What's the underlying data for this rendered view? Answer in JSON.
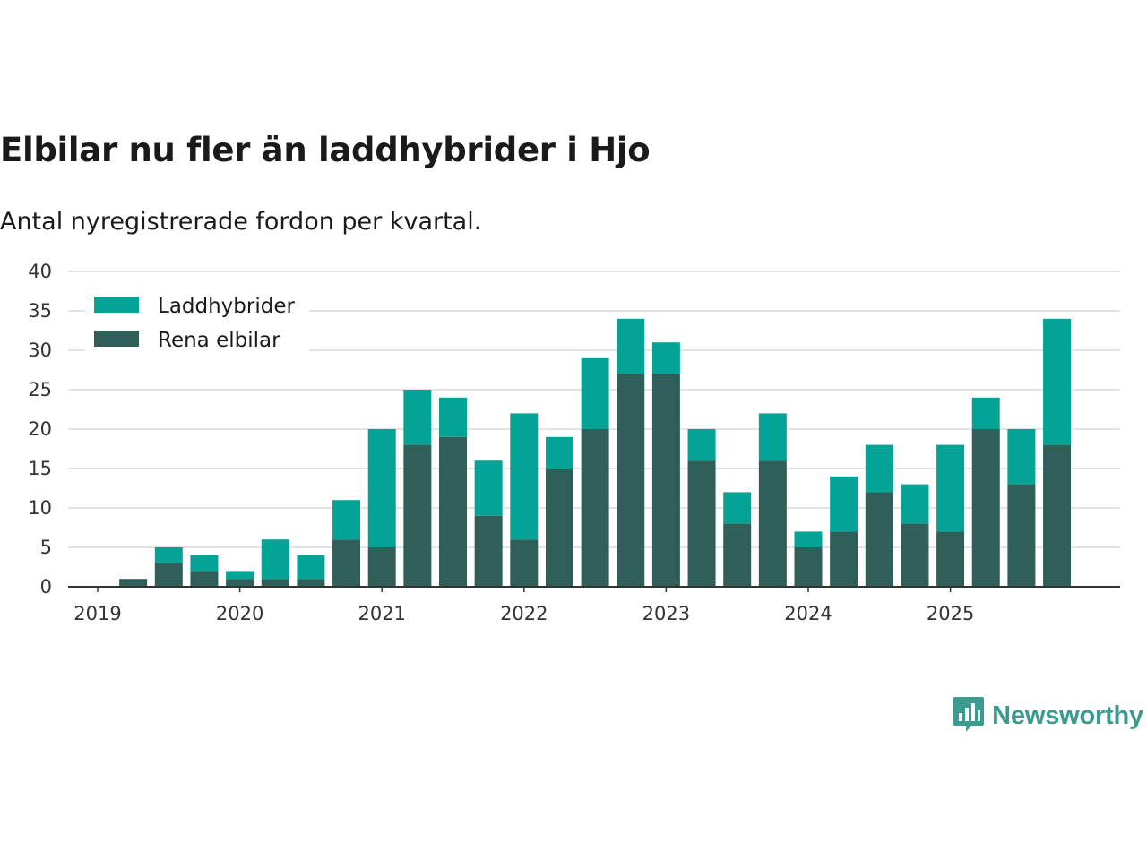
{
  "header": {
    "title": "Elbilar nu fler än laddhybrider i Hjo",
    "subtitle": "Antal nyregistrerade fordon per kvartal."
  },
  "brand": {
    "name": "Newsworthy",
    "icon": "bar-chart-speech-bubble-icon"
  },
  "colors": {
    "laddhybrider": "#05a396",
    "rena_elbilar": "#2f5f58",
    "grid": "#dcdcdc",
    "axis": "#333333",
    "brand": "#3a9b8e"
  },
  "chart_data": {
    "type": "bar",
    "stacked": true,
    "title": "Elbilar nu fler än laddhybrider i Hjo",
    "subtitle": "Antal nyregistrerade fordon per kvartal.",
    "xlabel": "",
    "ylabel": "",
    "ylim": [
      0,
      40
    ],
    "yticks": [
      0,
      5,
      10,
      15,
      20,
      25,
      30,
      35,
      40
    ],
    "grid": true,
    "legend_position": "top-left",
    "x_tick_labels": [
      "2019",
      "2020",
      "2021",
      "2022",
      "2023",
      "2024",
      "2025"
    ],
    "categories": [
      "2019 Q1",
      "2019 Q2",
      "2019 Q3",
      "2019 Q4",
      "2020 Q1",
      "2020 Q2",
      "2020 Q3",
      "2020 Q4",
      "2021 Q1",
      "2021 Q2",
      "2021 Q3",
      "2021 Q4",
      "2022 Q1",
      "2022 Q2",
      "2022 Q3",
      "2022 Q4",
      "2023 Q1",
      "2023 Q2",
      "2023 Q3",
      "2023 Q4",
      "2024 Q1",
      "2024 Q2",
      "2024 Q3",
      "2024 Q4",
      "2025 Q1",
      "2025 Q2",
      "2025 Q3",
      "2025 Q4"
    ],
    "series": [
      {
        "name": "Rena elbilar",
        "color_key": "rena_elbilar",
        "values": [
          0,
          1,
          3,
          2,
          1,
          1,
          1,
          6,
          5,
          18,
          19,
          9,
          6,
          15,
          20,
          27,
          27,
          16,
          8,
          16,
          5,
          7,
          12,
          8,
          7,
          20,
          13,
          18
        ]
      },
      {
        "name": "Laddhybrider",
        "color_key": "laddhybrider",
        "values": [
          0,
          0,
          2,
          2,
          1,
          5,
          3,
          5,
          15,
          7,
          5,
          7,
          16,
          4,
          9,
          7,
          4,
          4,
          4,
          6,
          2,
          7,
          6,
          5,
          11,
          4,
          7,
          16
        ]
      }
    ],
    "legend": [
      "Laddhybrider",
      "Rena elbilar"
    ]
  }
}
